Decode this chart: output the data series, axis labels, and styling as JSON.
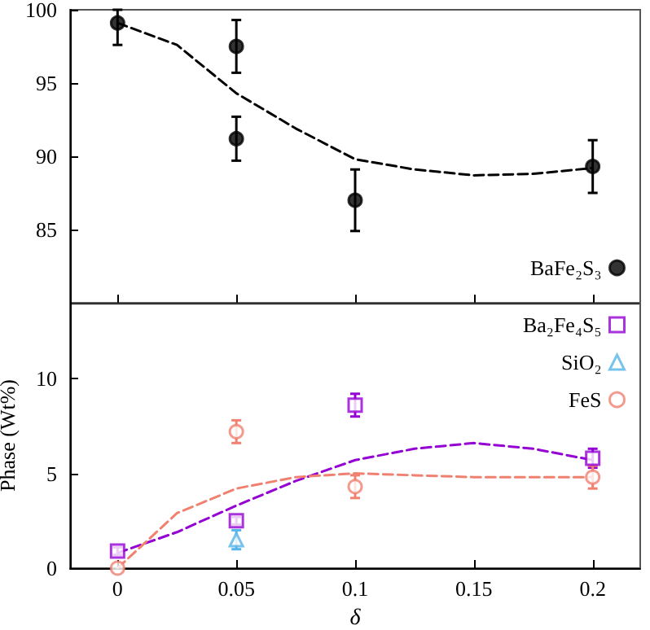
{
  "chart_data": [
    {
      "type": "scatter",
      "xlim": [
        -0.02,
        0.22
      ],
      "xticks": [
        0,
        0.05,
        0.1,
        0.15,
        0.2
      ],
      "ylim": [
        80,
        100
      ],
      "yticks": [
        85,
        90,
        95,
        100
      ],
      "tick_labels": "y",
      "legend": "bottom right",
      "grid": false,
      "series": [
        {
          "name": "BaFe₂S₃",
          "color": "#000000",
          "marker": "circle",
          "x": [
            0,
            0.05,
            0.05,
            0.1,
            0.2
          ],
          "values": [
            99.1,
            97.5,
            91.2,
            87.0,
            89.3
          ],
          "errors": [
            [
              97.6,
              100
            ],
            1.8,
            1.5,
            2.1,
            1.8
          ]
        },
        {
          "type": "line",
          "color": "#000000",
          "marker": "none",
          "line_style": "dashed",
          "x": [
            0,
            0.025,
            0.05,
            0.075,
            0.1,
            0.125,
            0.15,
            0.175,
            0.2
          ],
          "values": [
            99.1,
            97.6,
            94.3,
            91.9,
            89.8,
            89.1,
            88.7,
            88.8,
            89.2
          ]
        }
      ]
    },
    {
      "type": "scatter",
      "xlabel": "δ",
      "ylabel": "Phase (Wt%)",
      "xlim": [
        -0.02,
        0.22
      ],
      "xticks": [
        0,
        0.05,
        0.1,
        0.15,
        0.2
      ],
      "ylim": [
        0,
        14
      ],
      "yticks": [
        0,
        5,
        10
      ],
      "legend": "top right",
      "grid": false,
      "series": [
        {
          "name": "Ba₂Fe₄S₅",
          "color": "#9400d3",
          "marker": "square",
          "x": [
            0,
            0.05,
            0.1,
            0.2
          ],
          "values": [
            0.9,
            2.5,
            8.6,
            5.8
          ],
          "errors": [
            0.2,
            0.2,
            0.6,
            0.5
          ]
        },
        {
          "name": "SiO₂",
          "color": "#56b4e9",
          "marker": "triangle",
          "x": [
            0.05
          ],
          "values": [
            1.5
          ],
          "errors": [
            0.5
          ]
        },
        {
          "name": "FeS",
          "color": "#f08070",
          "marker": "circle",
          "x": [
            0,
            0.05,
            0.1,
            0.2
          ],
          "values": [
            0.0,
            7.2,
            4.3,
            4.8
          ],
          "errors": [
            null,
            0.6,
            0.6,
            0.6
          ]
        },
        {
          "type": "line",
          "color": "#9400d3",
          "marker": "none",
          "line_style": "dashed",
          "x": [
            0,
            0.025,
            0.05,
            0.075,
            0.1,
            0.125,
            0.15,
            0.175,
            0.2
          ],
          "values": [
            0.8,
            1.9,
            3.3,
            4.6,
            5.7,
            6.3,
            6.6,
            6.3,
            5.7
          ]
        },
        {
          "type": "line",
          "color": "#f08070",
          "marker": "none",
          "line_style": "dashed",
          "x": [
            0,
            0.025,
            0.05,
            0.075,
            0.1,
            0.125,
            0.15,
            0.175,
            0.2
          ],
          "values": [
            0,
            2.9,
            4.2,
            4.8,
            5.0,
            4.9,
            4.8,
            4.8,
            4.8
          ]
        }
      ]
    }
  ]
}
